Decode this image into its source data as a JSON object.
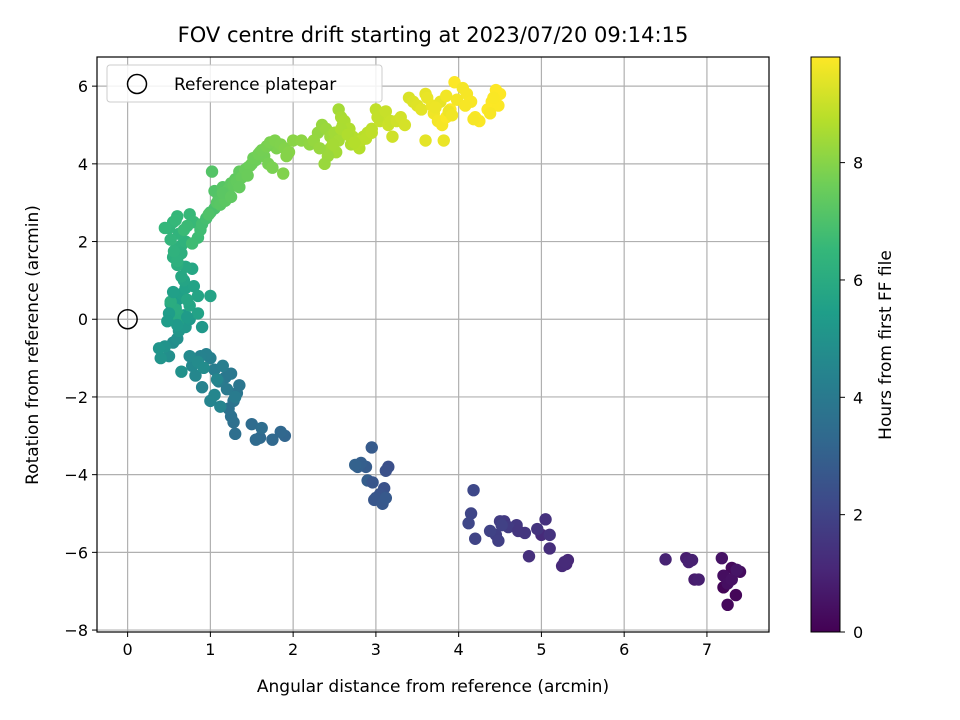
{
  "chart_data": {
    "type": "scatter",
    "title": "FOV centre drift starting at 2023/07/20 09:14:15",
    "xlabel": "Angular distance from reference (arcmin)",
    "ylabel": "Rotation from reference (arcmin)",
    "xlim": [
      -0.37,
      7.75
    ],
    "ylim": [
      -8.05,
      6.75
    ],
    "x_ticks": [
      0,
      1,
      2,
      3,
      4,
      5,
      6,
      7
    ],
    "y_ticks": [
      -8,
      -6,
      -4,
      -2,
      0,
      2,
      4,
      6
    ],
    "x_tick_labels": [
      "0",
      "1",
      "2",
      "3",
      "4",
      "5",
      "6",
      "7"
    ],
    "y_tick_labels": [
      "−8",
      "−6",
      "−4",
      "−2",
      "0",
      "2",
      "4",
      "6"
    ],
    "grid": true,
    "legend": {
      "position": "top-left",
      "entries": [
        {
          "label": "Reference platepar",
          "marker": "open-circle"
        }
      ]
    },
    "reference_point": {
      "x": 0,
      "y": 0
    },
    "colorbar": {
      "label": "Hours from first FF file",
      "colormap": "viridis",
      "range": [
        0,
        9.8
      ],
      "ticks": [
        0,
        2,
        4,
        6,
        8
      ],
      "tick_labels": [
        "0",
        "2",
        "4",
        "6",
        "8"
      ],
      "colors": [
        "#440154",
        "#482878",
        "#3e4989",
        "#31688e",
        "#26828e",
        "#1f9e89",
        "#35b779",
        "#6ece58",
        "#b5de2b",
        "#fde725"
      ]
    },
    "series": [
      {
        "x": [
          7.2,
          7.35,
          7.25,
          7.3,
          7.4,
          7.2,
          7.25,
          7.3,
          7.18,
          7.36,
          6.8,
          6.85,
          6.75,
          6.9,
          6.5,
          6.78,
          6.82
        ],
        "y": [
          -6.9,
          -7.1,
          -7.35,
          -6.4,
          -6.5,
          -6.6,
          -6.8,
          -6.7,
          -6.15,
          -6.45,
          -6.2,
          -6.7,
          -6.15,
          -6.7,
          -6.18,
          -6.25,
          -6.2
        ],
        "hours": [
          0.1,
          0.15,
          0.2,
          0.25,
          0.3,
          0.35,
          0.4,
          0.45,
          0.5,
          0.55,
          0.7,
          0.75,
          0.8,
          0.85,
          0.95,
          0.9,
          0.88
        ]
      },
      {
        "x": [
          5.3,
          5.25,
          5.0,
          5.1,
          4.85,
          5.05,
          5.1,
          4.95,
          4.8,
          4.7,
          4.55,
          4.6,
          4.5,
          4.45,
          4.48,
          4.52,
          4.38,
          4.2,
          4.15,
          4.12,
          4.18,
          4.72,
          5.32,
          5.28
        ],
        "y": [
          -6.3,
          -6.35,
          -5.55,
          -5.9,
          -6.1,
          -5.15,
          -5.55,
          -5.4,
          -5.5,
          -5.3,
          -5.2,
          -5.35,
          -5.2,
          -5.55,
          -5.7,
          -5.3,
          -5.45,
          -5.65,
          -5.0,
          -5.25,
          -4.4,
          -5.45,
          -6.2,
          -6.25
        ],
        "hours": [
          1.1,
          1.15,
          1.2,
          1.3,
          1.35,
          1.4,
          1.45,
          1.5,
          1.55,
          1.6,
          1.65,
          1.7,
          1.75,
          1.8,
          1.85,
          1.9,
          1.95,
          2.0,
          2.05,
          2.1,
          2.15,
          1.55,
          1.12,
          1.18
        ]
      },
      {
        "x": [
          3.15,
          3.12,
          3.1,
          3.05,
          3.0,
          2.98,
          3.08,
          3.12,
          2.95,
          2.88,
          2.9,
          2.82,
          2.78,
          2.75,
          2.96
        ],
        "y": [
          -3.8,
          -3.9,
          -4.35,
          -4.5,
          -4.6,
          -4.65,
          -4.75,
          -4.6,
          -3.3,
          -3.8,
          -4.15,
          -3.7,
          -3.8,
          -3.75,
          -4.2
        ],
        "hours": [
          2.4,
          2.45,
          2.5,
          2.55,
          2.6,
          2.65,
          2.7,
          2.75,
          2.8,
          2.85,
          2.9,
          2.95,
          3.0,
          3.05,
          2.62
        ]
      },
      {
        "x": [
          1.9,
          1.85,
          1.75,
          1.6,
          1.55,
          1.5,
          1.62,
          1.3,
          1.28,
          1.25,
          1.22,
          1.28,
          1.32,
          1.35,
          1.18,
          1.25,
          1.2,
          1.3,
          1.1,
          1.05,
          1.15,
          1.0,
          0.95,
          0.88,
          0.9,
          1.0,
          1.05,
          0.82,
          0.78,
          0.75,
          0.85,
          0.92,
          1.08,
          1.12
        ],
        "y": [
          -3.0,
          -2.9,
          -3.1,
          -3.05,
          -3.1,
          -2.7,
          -2.8,
          -2.95,
          -2.65,
          -2.5,
          -2.3,
          -2.1,
          -1.9,
          -1.7,
          -1.5,
          -1.4,
          -1.8,
          -2.0,
          -1.6,
          -1.3,
          -1.2,
          -1.0,
          -0.9,
          -0.95,
          -1.75,
          -2.1,
          -1.95,
          -1.45,
          -1.2,
          -0.95,
          -1.1,
          -1.25,
          -1.55,
          -2.25
        ],
        "hours": [
          3.2,
          3.25,
          3.3,
          3.35,
          3.4,
          3.45,
          3.5,
          3.55,
          3.6,
          3.65,
          3.7,
          3.75,
          3.8,
          3.85,
          3.9,
          3.95,
          4.0,
          4.05,
          4.1,
          4.15,
          4.2,
          4.25,
          4.3,
          4.35,
          4.4,
          4.45,
          4.5,
          4.55,
          4.6,
          4.65,
          4.7,
          4.75,
          4.48,
          4.42
        ]
      },
      {
        "x": [
          0.55,
          0.5,
          0.6,
          0.65,
          0.45,
          0.4,
          0.38,
          0.62,
          0.7,
          0.75,
          0.68,
          0.55,
          0.58,
          0.6,
          0.52,
          0.65,
          0.7,
          0.8,
          0.85,
          0.75,
          0.72,
          0.6,
          0.55,
          0.62,
          0.58,
          0.52,
          0.85,
          1.0,
          0.9,
          0.68,
          0.78,
          0.65,
          0.7,
          0.72,
          0.6,
          0.5,
          0.48,
          0.55
        ],
        "y": [
          -0.6,
          -0.95,
          -0.5,
          -1.35,
          -0.7,
          -1.0,
          -0.75,
          -0.3,
          -0.2,
          0.0,
          0.1,
          0.2,
          0.3,
          0.5,
          0.4,
          0.65,
          0.8,
          0.85,
          0.6,
          0.35,
          0.5,
          -0.1,
          0.0,
          0.1,
          0.25,
          0.45,
          0.15,
          0.6,
          -0.2,
          1.0,
          1.3,
          1.1,
          1.35,
          0.05,
          -0.15,
          0.15,
          -0.05,
          0.7
        ],
        "hours": [
          4.8,
          4.85,
          4.9,
          4.95,
          5.0,
          5.05,
          5.1,
          5.15,
          5.2,
          5.25,
          5.3,
          5.35,
          5.4,
          5.45,
          5.5,
          5.55,
          5.6,
          5.65,
          5.7,
          5.75,
          5.8,
          5.85,
          5.9,
          5.95,
          6.0,
          6.05,
          5.62,
          5.68,
          5.22,
          5.72,
          5.78,
          5.84,
          5.9,
          5.34,
          5.28,
          5.42,
          5.38,
          5.52
        ]
      },
      {
        "x": [
          0.6,
          0.55,
          0.58,
          0.65,
          0.7,
          0.62,
          0.5,
          0.55,
          0.6,
          0.75,
          0.8,
          0.72,
          0.85,
          0.88,
          0.9,
          0.95,
          1.0,
          1.05,
          1.1,
          0.98,
          0.65,
          0.6,
          0.52,
          0.45,
          0.58,
          0.68,
          0.78,
          0.56
        ],
        "y": [
          1.4,
          1.6,
          1.8,
          1.9,
          2.0,
          2.2,
          2.35,
          2.5,
          2.65,
          2.7,
          2.5,
          2.4,
          2.1,
          2.3,
          2.45,
          2.6,
          2.75,
          2.85,
          3.0,
          2.7,
          1.7,
          1.5,
          2.05,
          2.35,
          2.55,
          2.3,
          1.95,
          1.75
        ],
        "hours": [
          6.1,
          6.15,
          6.2,
          6.25,
          6.3,
          6.35,
          6.4,
          6.45,
          6.5,
          6.55,
          6.6,
          6.65,
          6.7,
          6.75,
          6.8,
          6.85,
          6.9,
          6.95,
          7.0,
          7.05,
          6.18,
          6.22,
          6.42,
          6.48,
          6.52,
          6.62,
          6.72,
          6.28
        ]
      },
      {
        "x": [
          1.05,
          1.1,
          1.15,
          1.2,
          1.25,
          1.3,
          1.35,
          1.4,
          1.45,
          1.5,
          1.55,
          1.6,
          1.65,
          1.7,
          1.75,
          1.8,
          1.02,
          1.08,
          1.12,
          1.18,
          1.22,
          1.28,
          1.32,
          1.38,
          1.42,
          1.48,
          1.52,
          1.58,
          1.62,
          1.68,
          1.72,
          1.78,
          1.85,
          1.9,
          1.95,
          2.0,
          1.88,
          1.92,
          1.15,
          1.25,
          1.35,
          1.45
        ],
        "y": [
          3.3,
          3.1,
          3.4,
          3.2,
          3.5,
          3.6,
          3.8,
          3.7,
          3.9,
          4.0,
          4.1,
          4.3,
          4.2,
          4.0,
          3.9,
          4.4,
          3.8,
          3.0,
          2.95,
          3.05,
          3.35,
          3.45,
          3.55,
          3.65,
          3.85,
          3.95,
          4.15,
          4.25,
          4.35,
          4.45,
          4.55,
          4.6,
          4.5,
          4.4,
          4.3,
          4.6,
          3.75,
          4.2,
          3.25,
          3.15,
          3.4,
          3.7
        ],
        "hours": [
          7.1,
          7.15,
          7.2,
          7.25,
          7.3,
          7.35,
          7.4,
          7.45,
          7.5,
          7.55,
          7.6,
          7.65,
          7.7,
          7.75,
          7.8,
          7.85,
          7.12,
          7.18,
          7.22,
          7.28,
          7.32,
          7.38,
          7.42,
          7.48,
          7.52,
          7.58,
          7.62,
          7.68,
          7.72,
          7.78,
          7.82,
          7.88,
          7.9,
          7.95,
          8.0,
          8.05,
          7.92,
          7.98,
          7.26,
          7.34,
          7.44,
          7.54
        ]
      },
      {
        "x": [
          2.1,
          2.2,
          2.3,
          2.35,
          2.4,
          2.45,
          2.5,
          2.55,
          2.6,
          2.65,
          2.7,
          2.75,
          2.8,
          2.85,
          2.9,
          2.95,
          3.0,
          3.05,
          3.1,
          3.15,
          3.2,
          2.5,
          2.55,
          2.58,
          2.62,
          2.68,
          2.72,
          2.78,
          2.82,
          2.88,
          2.45,
          2.52,
          2.42,
          2.38,
          2.48,
          2.58,
          2.66,
          2.74,
          2.95,
          3.02,
          3.12,
          3.18,
          2.25,
          2.32
        ],
        "y": [
          4.6,
          4.5,
          4.8,
          5.0,
          4.9,
          4.7,
          4.6,
          5.4,
          5.0,
          4.8,
          4.5,
          4.6,
          4.4,
          4.7,
          4.8,
          4.9,
          5.4,
          5.1,
          5.3,
          5.0,
          4.7,
          4.8,
          4.6,
          5.2,
          5.1,
          4.9,
          4.7,
          4.5,
          4.6,
          4.65,
          4.4,
          4.3,
          4.2,
          4.0,
          4.5,
          4.9,
          4.75,
          4.55,
          4.8,
          5.2,
          5.35,
          5.1,
          4.6,
          4.4
        ],
        "hours": [
          8.1,
          8.15,
          8.2,
          8.25,
          8.3,
          8.35,
          8.4,
          8.45,
          8.5,
          8.55,
          8.6,
          8.65,
          8.7,
          8.75,
          8.8,
          8.85,
          8.9,
          8.95,
          9.0,
          9.05,
          9.1,
          8.42,
          8.48,
          8.52,
          8.58,
          8.62,
          8.68,
          8.72,
          8.78,
          8.82,
          8.38,
          8.44,
          8.32,
          8.28,
          8.46,
          8.56,
          8.64,
          8.7,
          8.86,
          8.92,
          8.98,
          9.02,
          8.22,
          8.26
        ]
      },
      {
        "x": [
          3.25,
          3.3,
          3.35,
          3.4,
          3.45,
          3.5,
          3.55,
          3.6,
          3.62,
          3.68,
          3.7,
          3.75,
          3.8,
          3.85,
          3.9,
          3.95,
          3.78,
          3.82,
          3.88,
          3.92,
          4.05,
          4.1,
          4.15,
          4.2,
          4.25,
          4.35,
          4.4,
          4.45,
          4.5,
          4.48,
          4.42,
          4.38,
          3.6,
          3.72,
          3.98,
          4.08,
          3.85,
          4.18
        ],
        "y": [
          5.1,
          5.2,
          5.0,
          5.7,
          5.6,
          5.5,
          5.4,
          5.8,
          5.7,
          5.5,
          5.3,
          5.1,
          5.0,
          5.2,
          5.4,
          6.1,
          5.6,
          4.6,
          5.35,
          5.25,
          5.95,
          5.8,
          5.6,
          5.2,
          5.1,
          5.4,
          5.6,
          5.9,
          5.8,
          5.5,
          5.7,
          5.3,
          4.6,
          5.45,
          5.65,
          5.5,
          5.75,
          5.15
        ],
        "hours": [
          9.1,
          9.15,
          9.2,
          9.25,
          9.3,
          9.35,
          9.4,
          9.45,
          9.5,
          9.55,
          9.6,
          9.65,
          9.7,
          9.75,
          9.8,
          9.78,
          9.48,
          9.52,
          9.58,
          9.62,
          9.68,
          9.7,
          9.72,
          9.74,
          9.76,
          9.78,
          9.79,
          9.8,
          9.8,
          9.77,
          9.75,
          9.73,
          9.42,
          9.56,
          9.66,
          9.71,
          9.64,
          9.69
        ]
      }
    ]
  }
}
